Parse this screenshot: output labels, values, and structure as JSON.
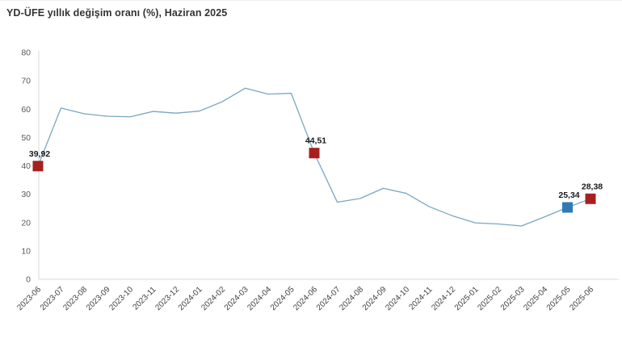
{
  "title": "YD-ÜFE yıllık değişim oranı (%), Haziran 2025",
  "chart_data": {
    "type": "line",
    "title": "YD-ÜFE yıllık değişim oranı (%), Haziran 2025",
    "xlabel": "",
    "ylabel": "",
    "ylim": [
      0,
      80
    ],
    "yticks": [
      0,
      10,
      20,
      30,
      40,
      50,
      60,
      70,
      80
    ],
    "grid": false,
    "legend_position": "none",
    "x": [
      "2023-06",
      "2023-07",
      "2023-08",
      "2023-09",
      "2023-10",
      "2023-11",
      "2023-12",
      "2024-01",
      "2024-02",
      "2024-03",
      "2024-04",
      "2024-05",
      "2024-06",
      "2024-07",
      "2024-08",
      "2024-09",
      "2024-10",
      "2024-11",
      "2024-12",
      "2025-01",
      "2025-02",
      "2025-03",
      "2025-04",
      "2025-05",
      "2025-06"
    ],
    "series": [
      {
        "name": "YD-ÜFE yıllık değişim oranı (%)",
        "values": [
          39.92,
          60.4,
          58.4,
          57.5,
          57.3,
          59.2,
          58.6,
          59.3,
          62.6,
          67.4,
          65.3,
          65.6,
          44.51,
          27.2,
          28.5,
          32.1,
          30.3,
          25.6,
          22.4,
          19.9,
          19.5,
          18.8,
          22.0,
          25.34,
          28.38
        ]
      }
    ],
    "annotations": [
      {
        "x": "2023-06",
        "value": 39.92,
        "label": "39,92",
        "marker_color": "#a6201f"
      },
      {
        "x": "2024-06",
        "value": 44.51,
        "label": "44,51",
        "marker_color": "#a6201f"
      },
      {
        "x": "2025-05",
        "value": 25.34,
        "label": "25,34",
        "marker_color": "#2e7ab5"
      },
      {
        "x": "2025-06",
        "value": 28.38,
        "label": "28,38",
        "marker_color": "#a6201f"
      }
    ],
    "colors": {
      "line": "#7aa6c2",
      "axis": "#d8d8d8",
      "y_tick_label": "#595959",
      "x_tick_label": "#404040",
      "annotation_text": "#1a1a1a",
      "marker_red": "#a6201f",
      "marker_blue": "#2e7ab5"
    }
  }
}
